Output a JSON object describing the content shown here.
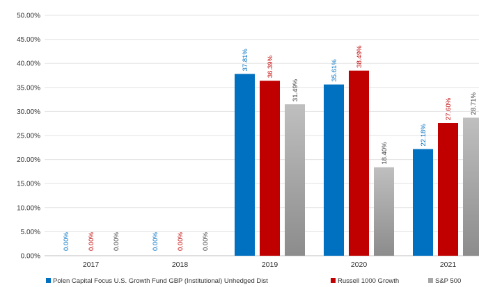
{
  "chart_data": {
    "type": "bar",
    "categories": [
      "2017",
      "2018",
      "2019",
      "2020",
      "2021"
    ],
    "series": [
      {
        "name": "Polen Capital Focus U.S. Growth Fund GBP (Institutional) Unhedged Dist",
        "values": [
          0.0,
          0.0,
          37.81,
          35.61,
          22.18
        ],
        "labels": [
          "0.00%",
          "0.00%",
          "37.81%",
          "35.61%",
          "22.18%"
        ],
        "color": "#0070C0",
        "label_color": "#0070C0"
      },
      {
        "name": "Russell 1000 Growth",
        "values": [
          0.0,
          0.0,
          36.39,
          38.49,
          27.6
        ],
        "labels": [
          "0.00%",
          "0.00%",
          "36.39%",
          "38.49%",
          "27.60%"
        ],
        "color": "#C00000",
        "label_color": "#C00000"
      },
      {
        "name": "S&P 500",
        "values": [
          0.0,
          0.0,
          31.49,
          18.4,
          28.71
        ],
        "labels": [
          "0.00%",
          "0.00%",
          "31.49%",
          "18.40%",
          "28.71%"
        ],
        "color": "#A6A6A6",
        "label_color": "#404040"
      }
    ],
    "yticks": [
      "0.00%",
      "5.00%",
      "10.00%",
      "15.00%",
      "20.00%",
      "25.00%",
      "30.00%",
      "35.00%",
      "40.00%",
      "45.00%",
      "50.00%"
    ],
    "ylim": [
      0,
      50
    ],
    "grid": true,
    "legend_position": "bottom"
  }
}
